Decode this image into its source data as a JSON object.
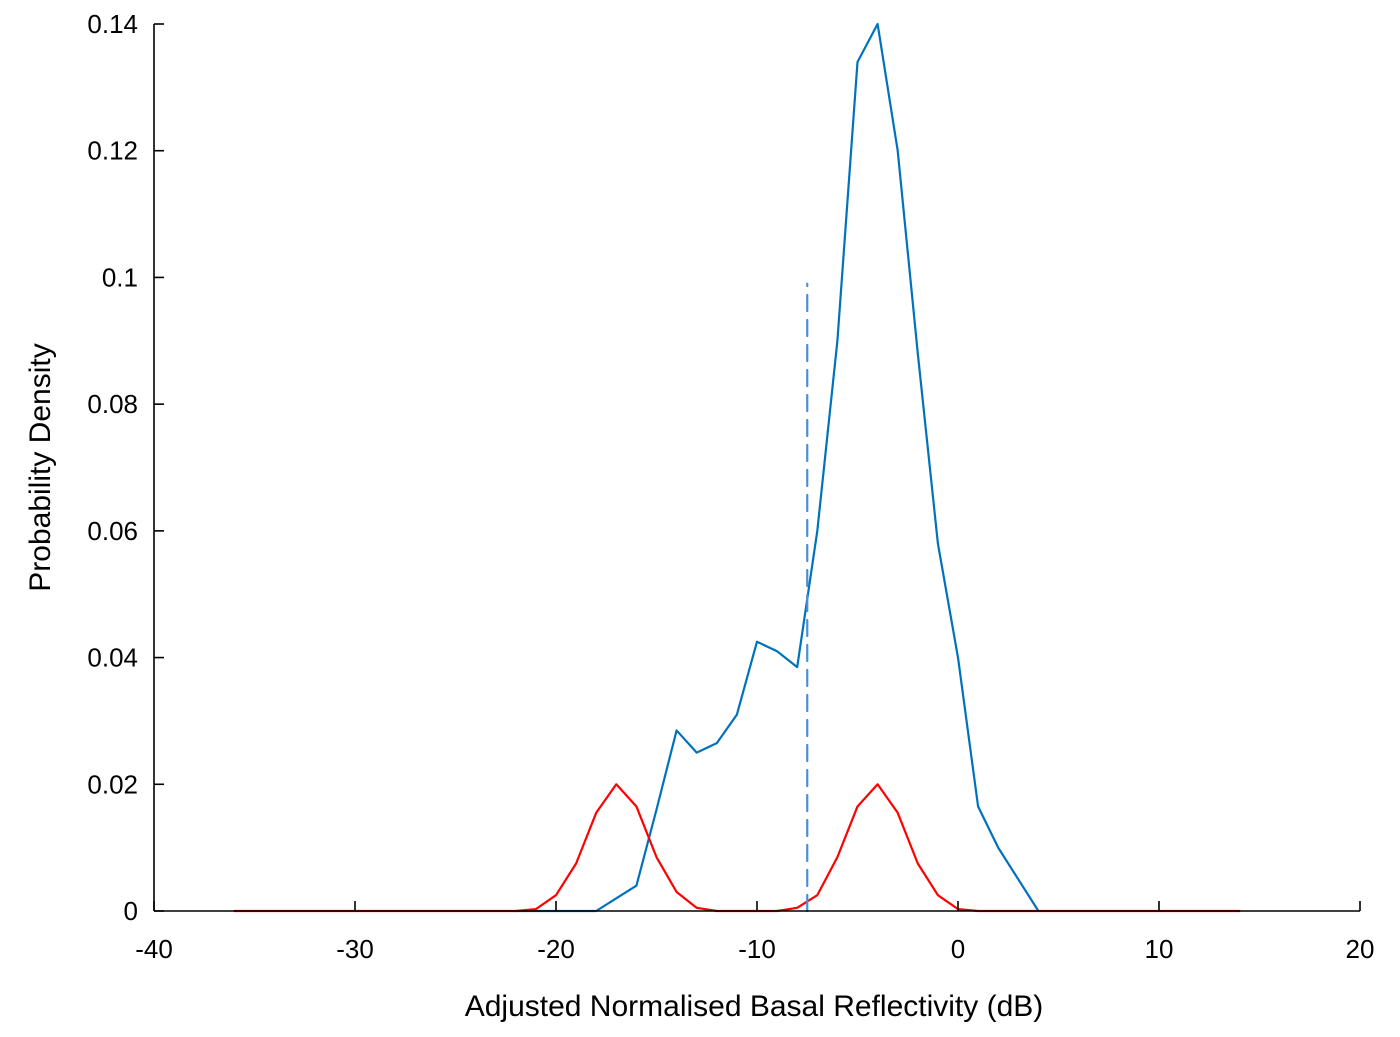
{
  "chart_data": {
    "type": "line",
    "title": "",
    "xlabel": "Adjusted Normalised Basal Reflectivity (dB)",
    "ylabel": "Probability Density",
    "xlim": [
      -40,
      20
    ],
    "ylim": [
      0,
      0.14
    ],
    "x_ticks": [
      -40,
      -30,
      -20,
      -10,
      0,
      10,
      20
    ],
    "x_tick_labels": [
      "-40",
      "-30",
      "-20",
      "-10",
      "0",
      "10",
      "20"
    ],
    "y_ticks": [
      0,
      0.02,
      0.04,
      0.06,
      0.08,
      0.1,
      0.12,
      0.14
    ],
    "y_tick_labels": [
      "0",
      "0.02",
      "0.04",
      "0.06",
      "0.08",
      "0.1",
      "0.12",
      "0.14"
    ],
    "grid": false,
    "legend": "none",
    "series": [
      {
        "color": "#0072bd",
        "style": "solid",
        "x": [
          -22,
          -21,
          -20,
          -19,
          -18,
          -17,
          -16,
          -15,
          -14,
          -13,
          -12,
          -11,
          -10,
          -9,
          -8,
          -7,
          -6,
          -5,
          -4,
          -3,
          -2,
          -1,
          0,
          1,
          2,
          3,
          4
        ],
        "y": [
          0,
          0,
          0,
          0,
          0,
          0.002,
          0.004,
          0.016,
          0.0285,
          0.025,
          0.0265,
          0.031,
          0.0425,
          0.041,
          0.0385,
          0.06,
          0.09,
          0.134,
          0.14,
          0.12,
          0.088,
          0.058,
          0.04,
          0.0165,
          0.01,
          0.005,
          0
        ]
      },
      {
        "color": "#ff0000",
        "style": "solid",
        "x": [
          -36,
          -22,
          -21,
          -20,
          -19,
          -18,
          -17,
          -16,
          -15,
          -14,
          -13,
          -12,
          -11,
          -10,
          -9,
          -8,
          -7,
          -6,
          -5,
          -4,
          -3,
          -2,
          -1,
          0,
          1,
          14
        ],
        "y": [
          0,
          0,
          0.0003,
          0.0025,
          0.0075,
          0.0155,
          0.02,
          0.0165,
          0.0085,
          0.003,
          0.0005,
          0,
          0,
          0,
          0,
          0.0005,
          0.0025,
          0.0085,
          0.0165,
          0.02,
          0.0155,
          0.0075,
          0.0025,
          0.0003,
          0,
          0
        ]
      },
      {
        "color": "#4a8fd0",
        "style": "dashed",
        "x": [
          -7.5,
          -7.5
        ],
        "y": [
          0,
          0.099
        ]
      }
    ]
  }
}
